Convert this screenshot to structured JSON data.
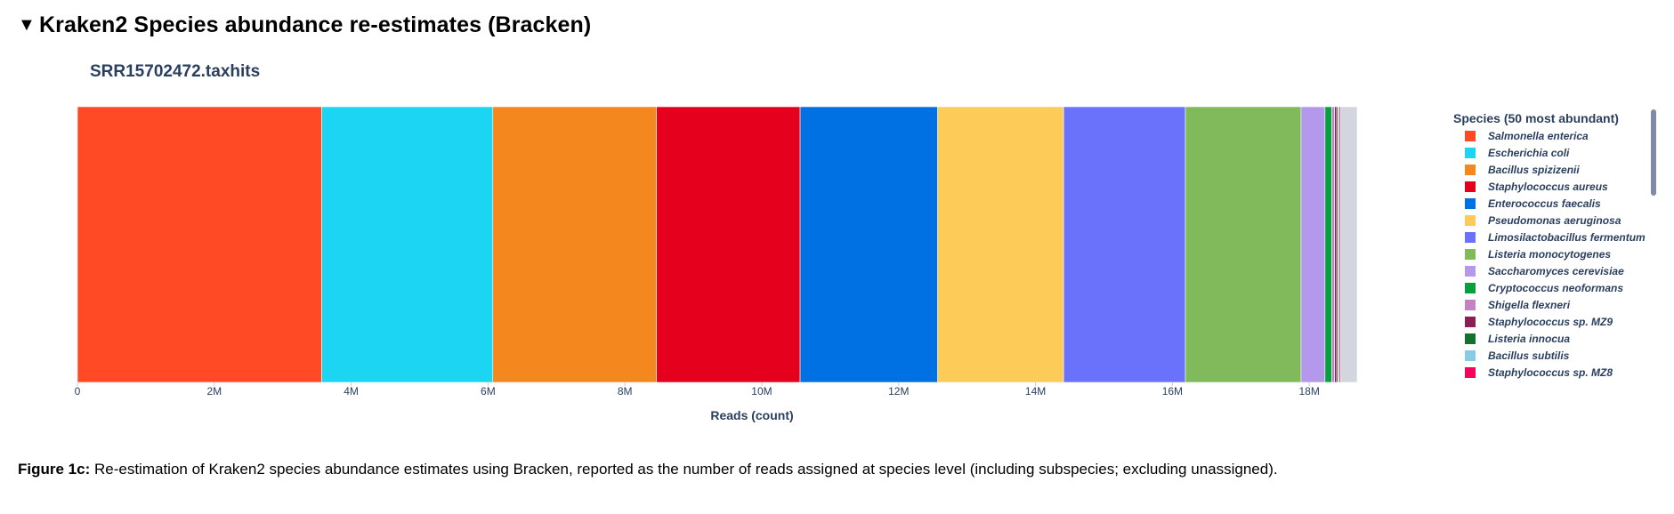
{
  "section": {
    "toggle_glyph": "▼",
    "title": "Kraken2 Species abundance re-estimates (Bracken)"
  },
  "legend": {
    "title": "Species (50 most abundant)"
  },
  "caption": {
    "label": "Figure 1c:",
    "text": "Re-estimation of Kraken2 species abundance estimates using Bracken, reported as the number of reads assigned at species level (including subspecies; excluding unassigned)."
  },
  "chart_data": {
    "type": "bar",
    "orientation": "horizontal",
    "stacked": true,
    "title": "SRR15702472.taxhits",
    "xlabel": "Reads (count)",
    "ylabel": "",
    "categories": [
      "SRR15702472.taxhits"
    ],
    "xlim": [
      0,
      18700000
    ],
    "xticks": [
      0,
      2000000,
      4000000,
      6000000,
      8000000,
      10000000,
      12000000,
      14000000,
      16000000,
      18000000
    ],
    "xtick_labels": [
      "0",
      "2M",
      "4M",
      "6M",
      "8M",
      "10M",
      "12M",
      "14M",
      "16M",
      "18M"
    ],
    "legend_position": "right",
    "grid": false,
    "series": [
      {
        "name": "Salmonella enterica",
        "color": "#FF4A25",
        "values": [
          3570000
        ]
      },
      {
        "name": "Escherichia coli",
        "color": "#1CD5F2",
        "values": [
          2500000
        ]
      },
      {
        "name": "Bacillus spizizenii",
        "color": "#F4871D",
        "values": [
          2390000
        ]
      },
      {
        "name": "Staphylococcus aureus",
        "color": "#E5001E",
        "values": [
          2100000
        ]
      },
      {
        "name": "Enterococcus faecalis",
        "color": "#0071E2",
        "values": [
          2010000
        ]
      },
      {
        "name": "Pseudomonas aeruginosa",
        "color": "#FDCB58",
        "values": [
          1840000
        ]
      },
      {
        "name": "Limosilactobacillus fermentum",
        "color": "#6A72FC",
        "values": [
          1780000
        ]
      },
      {
        "name": "Listeria monocytogenes",
        "color": "#80BA5A",
        "values": [
          1690000
        ]
      },
      {
        "name": "Saccharomyces cerevisiae",
        "color": "#B498EC",
        "values": [
          350000
        ]
      },
      {
        "name": "Cryptococcus neoformans",
        "color": "#06A03F",
        "values": [
          100000
        ]
      },
      {
        "name": "Shigella flexneri",
        "color": "#C383C2",
        "values": [
          40000
        ]
      },
      {
        "name": "Staphylococcus sp. MZ9",
        "color": "#8A1E55",
        "values": [
          30000
        ]
      },
      {
        "name": "Listeria innocua",
        "color": "#11722F",
        "values": [
          20000
        ]
      },
      {
        "name": "Bacillus subtilis",
        "color": "#86CCE2",
        "values": [
          20000
        ]
      },
      {
        "name": "Staphylococcus sp. MZ8",
        "color": "#F5045F",
        "values": [
          20000
        ]
      },
      {
        "name": "",
        "color": "#D3D6DF",
        "values": [
          240000
        ]
      }
    ]
  }
}
